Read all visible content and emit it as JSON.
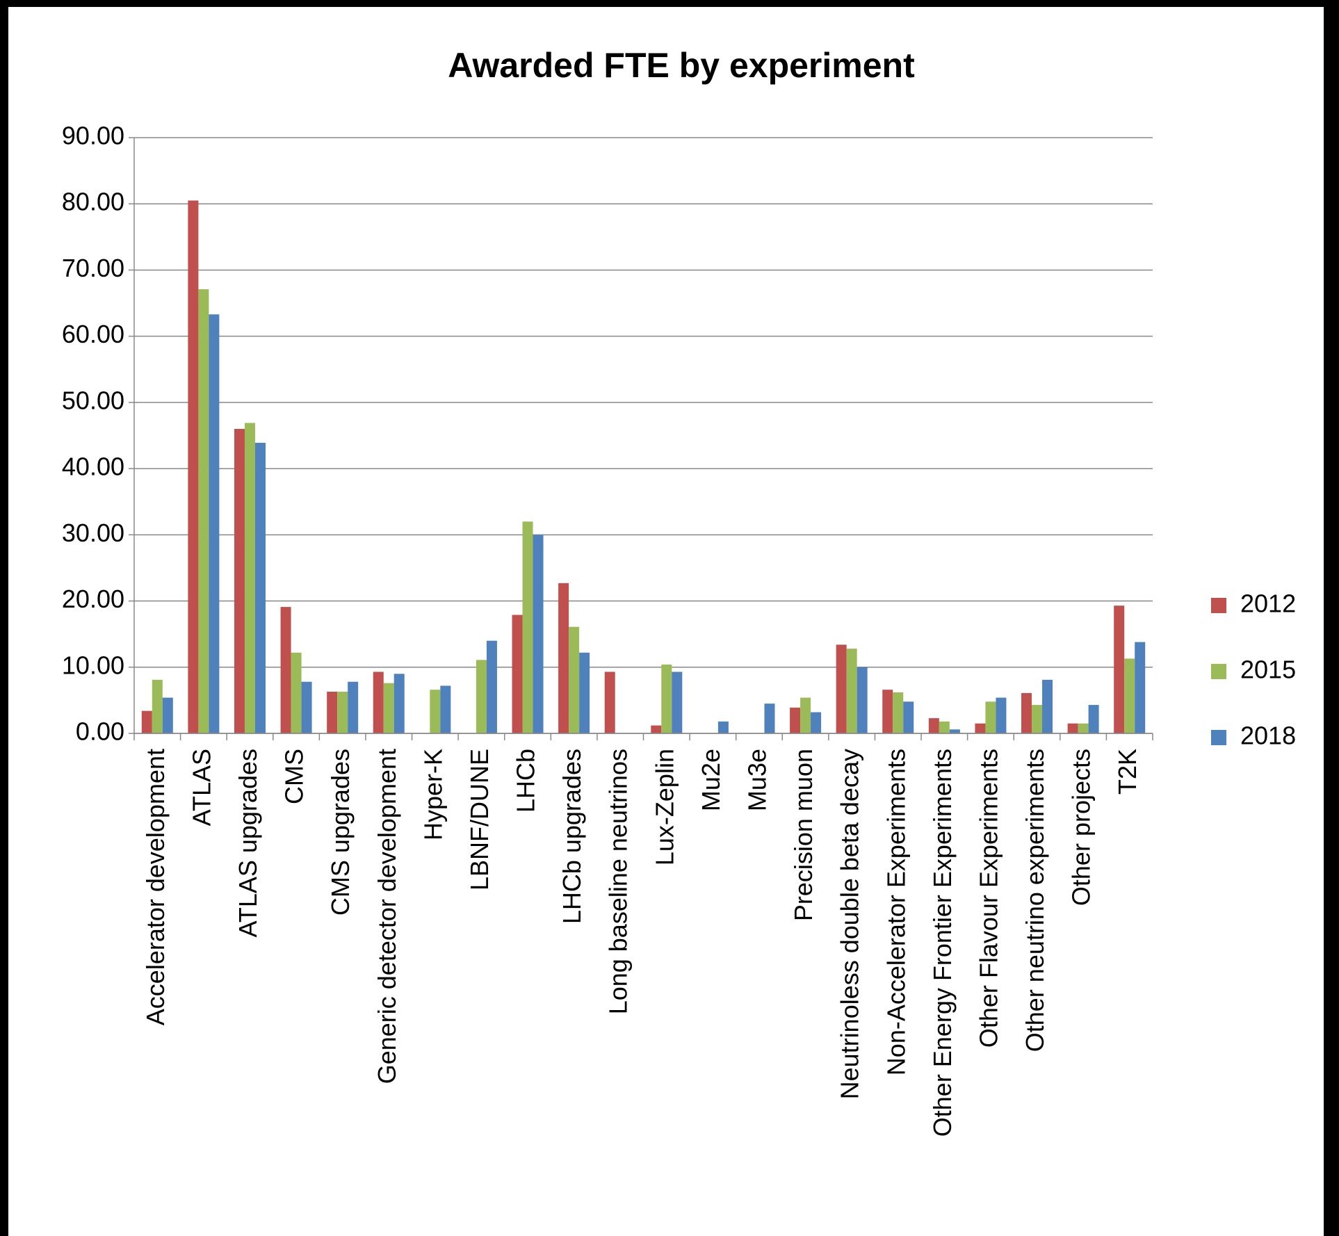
{
  "chart_data": {
    "type": "bar",
    "title": "Awarded FTE by experiment",
    "categories": [
      "Accelerator development",
      "ATLAS",
      "ATLAS upgrades",
      "CMS",
      "CMS upgrades",
      "Generic detector development",
      "Hyper-K",
      "LBNF/DUNE",
      "LHCb",
      "LHCb upgrades",
      "Long baseline neutrinos",
      "Lux-Zeplin",
      "Mu2e",
      "Mu3e",
      "Precision muon",
      "Neutrinoless double beta decay",
      "Non-Accelerator Experiments",
      "Other Energy Frontier Experiments",
      "Other Flavour Experiments",
      "Other neutrino experiments",
      "Other projects",
      "T2K"
    ],
    "series": [
      {
        "name": "2012",
        "color": "#c0504d",
        "values": [
          3.4,
          80.5,
          46,
          19.1,
          6.3,
          9.3,
          0,
          0,
          17.9,
          22.7,
          9.3,
          1.2,
          0,
          0,
          3.9,
          13.4,
          6.6,
          2.3,
          1.5,
          6.1,
          1.5,
          19.3
        ]
      },
      {
        "name": "2015",
        "color": "#9bbb59",
        "values": [
          8.1,
          67.1,
          46.9,
          12.2,
          6.3,
          7.6,
          6.6,
          11.1,
          32,
          16.1,
          0,
          10.4,
          0,
          0,
          5.4,
          12.8,
          6.2,
          1.8,
          4.8,
          4.3,
          1.5,
          11.3
        ]
      },
      {
        "name": "2018",
        "color": "#4f81bd",
        "values": [
          5.4,
          63.3,
          43.9,
          7.8,
          7.8,
          9.0,
          7.2,
          14.0,
          30,
          12.2,
          0,
          9.3,
          1.8,
          4.5,
          3.2,
          10,
          4.8,
          0.6,
          5.4,
          8.1,
          4.3,
          13.8
        ]
      }
    ],
    "ylim": [
      0,
      90
    ],
    "yticks": [
      {
        "value": 0,
        "label": "0.00"
      },
      {
        "value": 10,
        "label": "10.00"
      },
      {
        "value": 20,
        "label": "20.00"
      },
      {
        "value": 30,
        "label": "30.00"
      },
      {
        "value": 40,
        "label": "40.00"
      },
      {
        "value": 50,
        "label": "50.00"
      },
      {
        "value": 60,
        "label": "60.00"
      },
      {
        "value": 70,
        "label": "70.00"
      },
      {
        "value": 80,
        "label": "80.00"
      },
      {
        "value": 90,
        "label": "90.00"
      }
    ],
    "grid": true,
    "legend": "right"
  }
}
